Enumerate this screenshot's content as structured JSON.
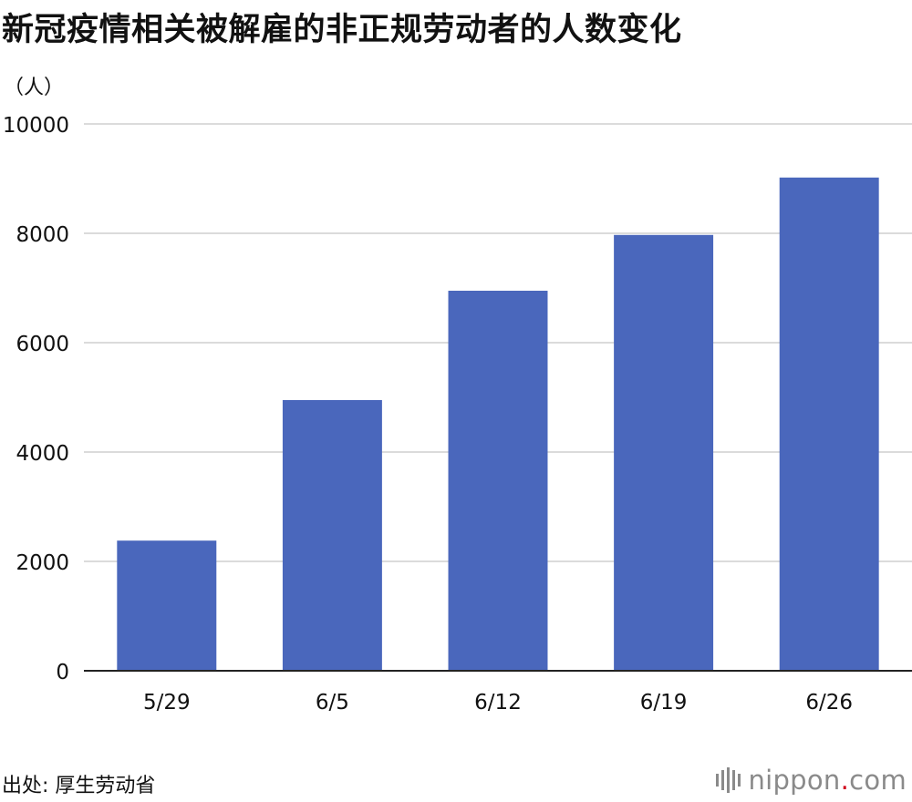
{
  "title": "新冠疫情相关被解雇的非正规劳动者的人数变化",
  "unit_label": "（人）",
  "source_label": "出处: 厚生劳动省",
  "logo": {
    "name": "nippon",
    "dot": ".",
    "tld": "com"
  },
  "colors": {
    "bar": "#4a67bc",
    "grid": "#cfcfcf",
    "axis": "#222222",
    "logo_dot": "#d0021b"
  },
  "chart_data": {
    "type": "bar",
    "categories": [
      "5/29",
      "6/5",
      "6/12",
      "6/19",
      "6/26"
    ],
    "values": [
      2380,
      4950,
      6950,
      7970,
      9020
    ],
    "title": "新冠疫情相关被解雇的非正规劳动者的人数变化",
    "ylabel": "（人）",
    "ylim": [
      0,
      10000
    ],
    "yticks": [
      0,
      2000,
      4000,
      6000,
      8000,
      10000
    ],
    "grid": true
  }
}
